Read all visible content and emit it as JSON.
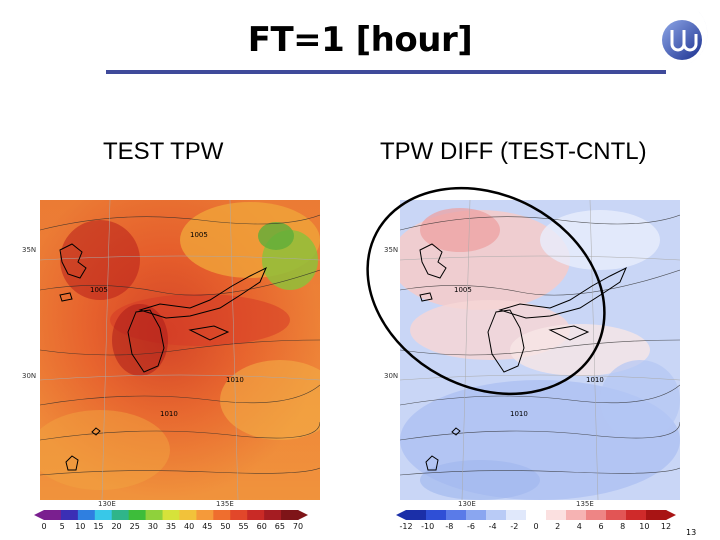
{
  "slide": {
    "title": "FT=1 [hour]",
    "page_number": "13"
  },
  "panels": {
    "left": {
      "label": "TEST  TPW",
      "lat_labels": [
        "35N",
        "30N"
      ],
      "lon_labels": [
        "130E",
        "135E"
      ],
      "isobar_labels": [
        "1005",
        "1005",
        "1010",
        "1010"
      ],
      "colorbar_ticks": [
        "0",
        "5",
        "10",
        "15",
        "20",
        "25",
        "30",
        "35",
        "40",
        "45",
        "50",
        "55",
        "60",
        "65",
        "70"
      ],
      "colorbar_colors": [
        "#7a1f8f",
        "#3b2fb5",
        "#2f7fe0",
        "#38c8e8",
        "#2fb58a",
        "#3dbd3a",
        "#8fd13c",
        "#d6e23a",
        "#f2c23a",
        "#f59a3a",
        "#ef6e2e",
        "#e2472a",
        "#c92a26",
        "#a51c22",
        "#7e1418"
      ]
    },
    "right": {
      "label": "TPW DIFF (TEST-CNTL)",
      "lat_labels": [
        "35N",
        "30N"
      ],
      "lon_labels": [
        "130E",
        "135E"
      ],
      "isobar_labels": [
        "1005",
        "1010",
        "1010"
      ],
      "colorbar_ticks": [
        "-12",
        "-10",
        "-8",
        "-6",
        "-4",
        "-2",
        "0",
        "2",
        "4",
        "6",
        "8",
        "10",
        "12"
      ],
      "colorbar_colors": [
        "#1b2fa8",
        "#2f4fd6",
        "#5a7be8",
        "#8aa6f0",
        "#b9cbf6",
        "#e0e8fb",
        "#ffffff",
        "#fbe0e0",
        "#f6b3b3",
        "#ee8585",
        "#e25555",
        "#cf2a2a",
        "#a81414"
      ]
    }
  }
}
